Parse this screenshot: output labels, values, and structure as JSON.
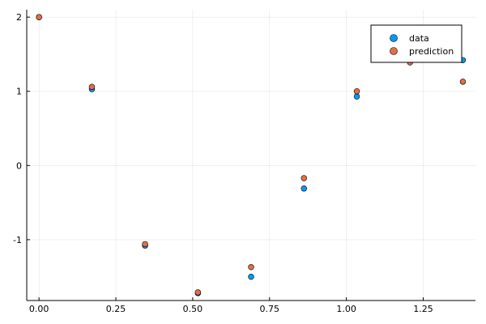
{
  "chart_data": {
    "type": "scatter",
    "title": "",
    "xlabel": "",
    "ylabel": "",
    "xlim": [
      -0.04,
      1.42
    ],
    "ylim": [
      -1.82,
      2.1
    ],
    "xticks": [
      0.0,
      0.25,
      0.5,
      0.75,
      1.0,
      1.25
    ],
    "xtick_labels": [
      "0.00",
      "0.25",
      "0.50",
      "0.75",
      "1.00",
      "1.25"
    ],
    "yticks": [
      -1,
      0,
      1,
      2
    ],
    "ytick_labels": [
      "-1",
      "0",
      "1",
      "2"
    ],
    "grid": true,
    "legend_position": "top-right",
    "series": [
      {
        "name": "data",
        "color": "#009af9",
        "x": [
          0.0,
          0.172,
          0.345,
          0.517,
          0.69,
          0.862,
          1.034,
          1.207,
          1.379
        ],
        "y": [
          2.0,
          1.03,
          -1.08,
          -1.72,
          -1.5,
          -0.31,
          0.93,
          1.41,
          1.42
        ]
      },
      {
        "name": "prediction",
        "color": "#e26f46",
        "x": [
          0.0,
          0.172,
          0.345,
          0.517,
          0.69,
          0.862,
          1.034,
          1.207,
          1.379
        ],
        "y": [
          2.0,
          1.06,
          -1.06,
          -1.71,
          -1.37,
          -0.17,
          1.0,
          1.39,
          1.13
        ]
      }
    ]
  }
}
